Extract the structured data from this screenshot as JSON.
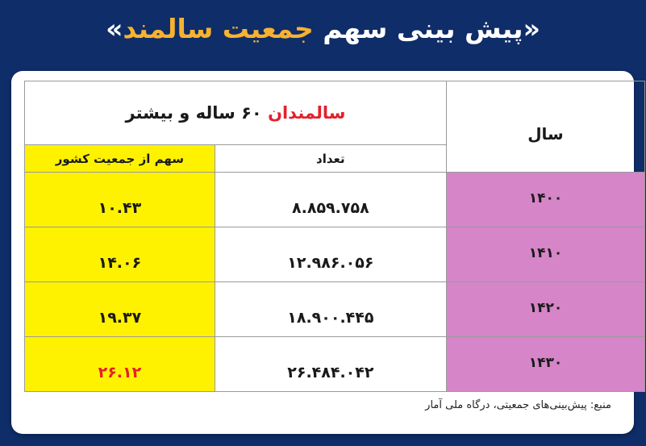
{
  "title": {
    "part_white": "پیش بینی سهم ",
    "part_gold": "جمعیت سالمند",
    "quote_open": "«",
    "quote_close": "»"
  },
  "table": {
    "group_header": {
      "red": "سالمندان",
      "rest": " ۶۰ ساله و بیشتر"
    },
    "year_header": "سال",
    "count_header": "تعداد",
    "share_header": "سهم از جمعیت کشور",
    "rows": [
      {
        "year": "۱۴۰۰",
        "count": "۸.۸۵۹.۷۵۸",
        "share": "۱۰.۴۳"
      },
      {
        "year": "۱۴۱۰",
        "count": "۱۲.۹۸۶.۰۵۶",
        "share": "۱۴.۰۶"
      },
      {
        "year": "۱۴۲۰",
        "count": "۱۸.۹۰۰.۴۴۵",
        "share": "۱۹.۳۷"
      },
      {
        "year": "۱۴۳۰",
        "count": "۲۶.۴۸۴.۰۴۲",
        "share": "۲۶.۱۲"
      }
    ]
  },
  "source": "منبع: پیش‌بینی‌های جمعیتی، درگاه ملی آمار",
  "colors": {
    "background": "#0f2d68",
    "title_gold": "#f7b230",
    "share_cell": "#fff200",
    "year_cell": "#d585c8",
    "highlight_red": "#e3212b"
  }
}
